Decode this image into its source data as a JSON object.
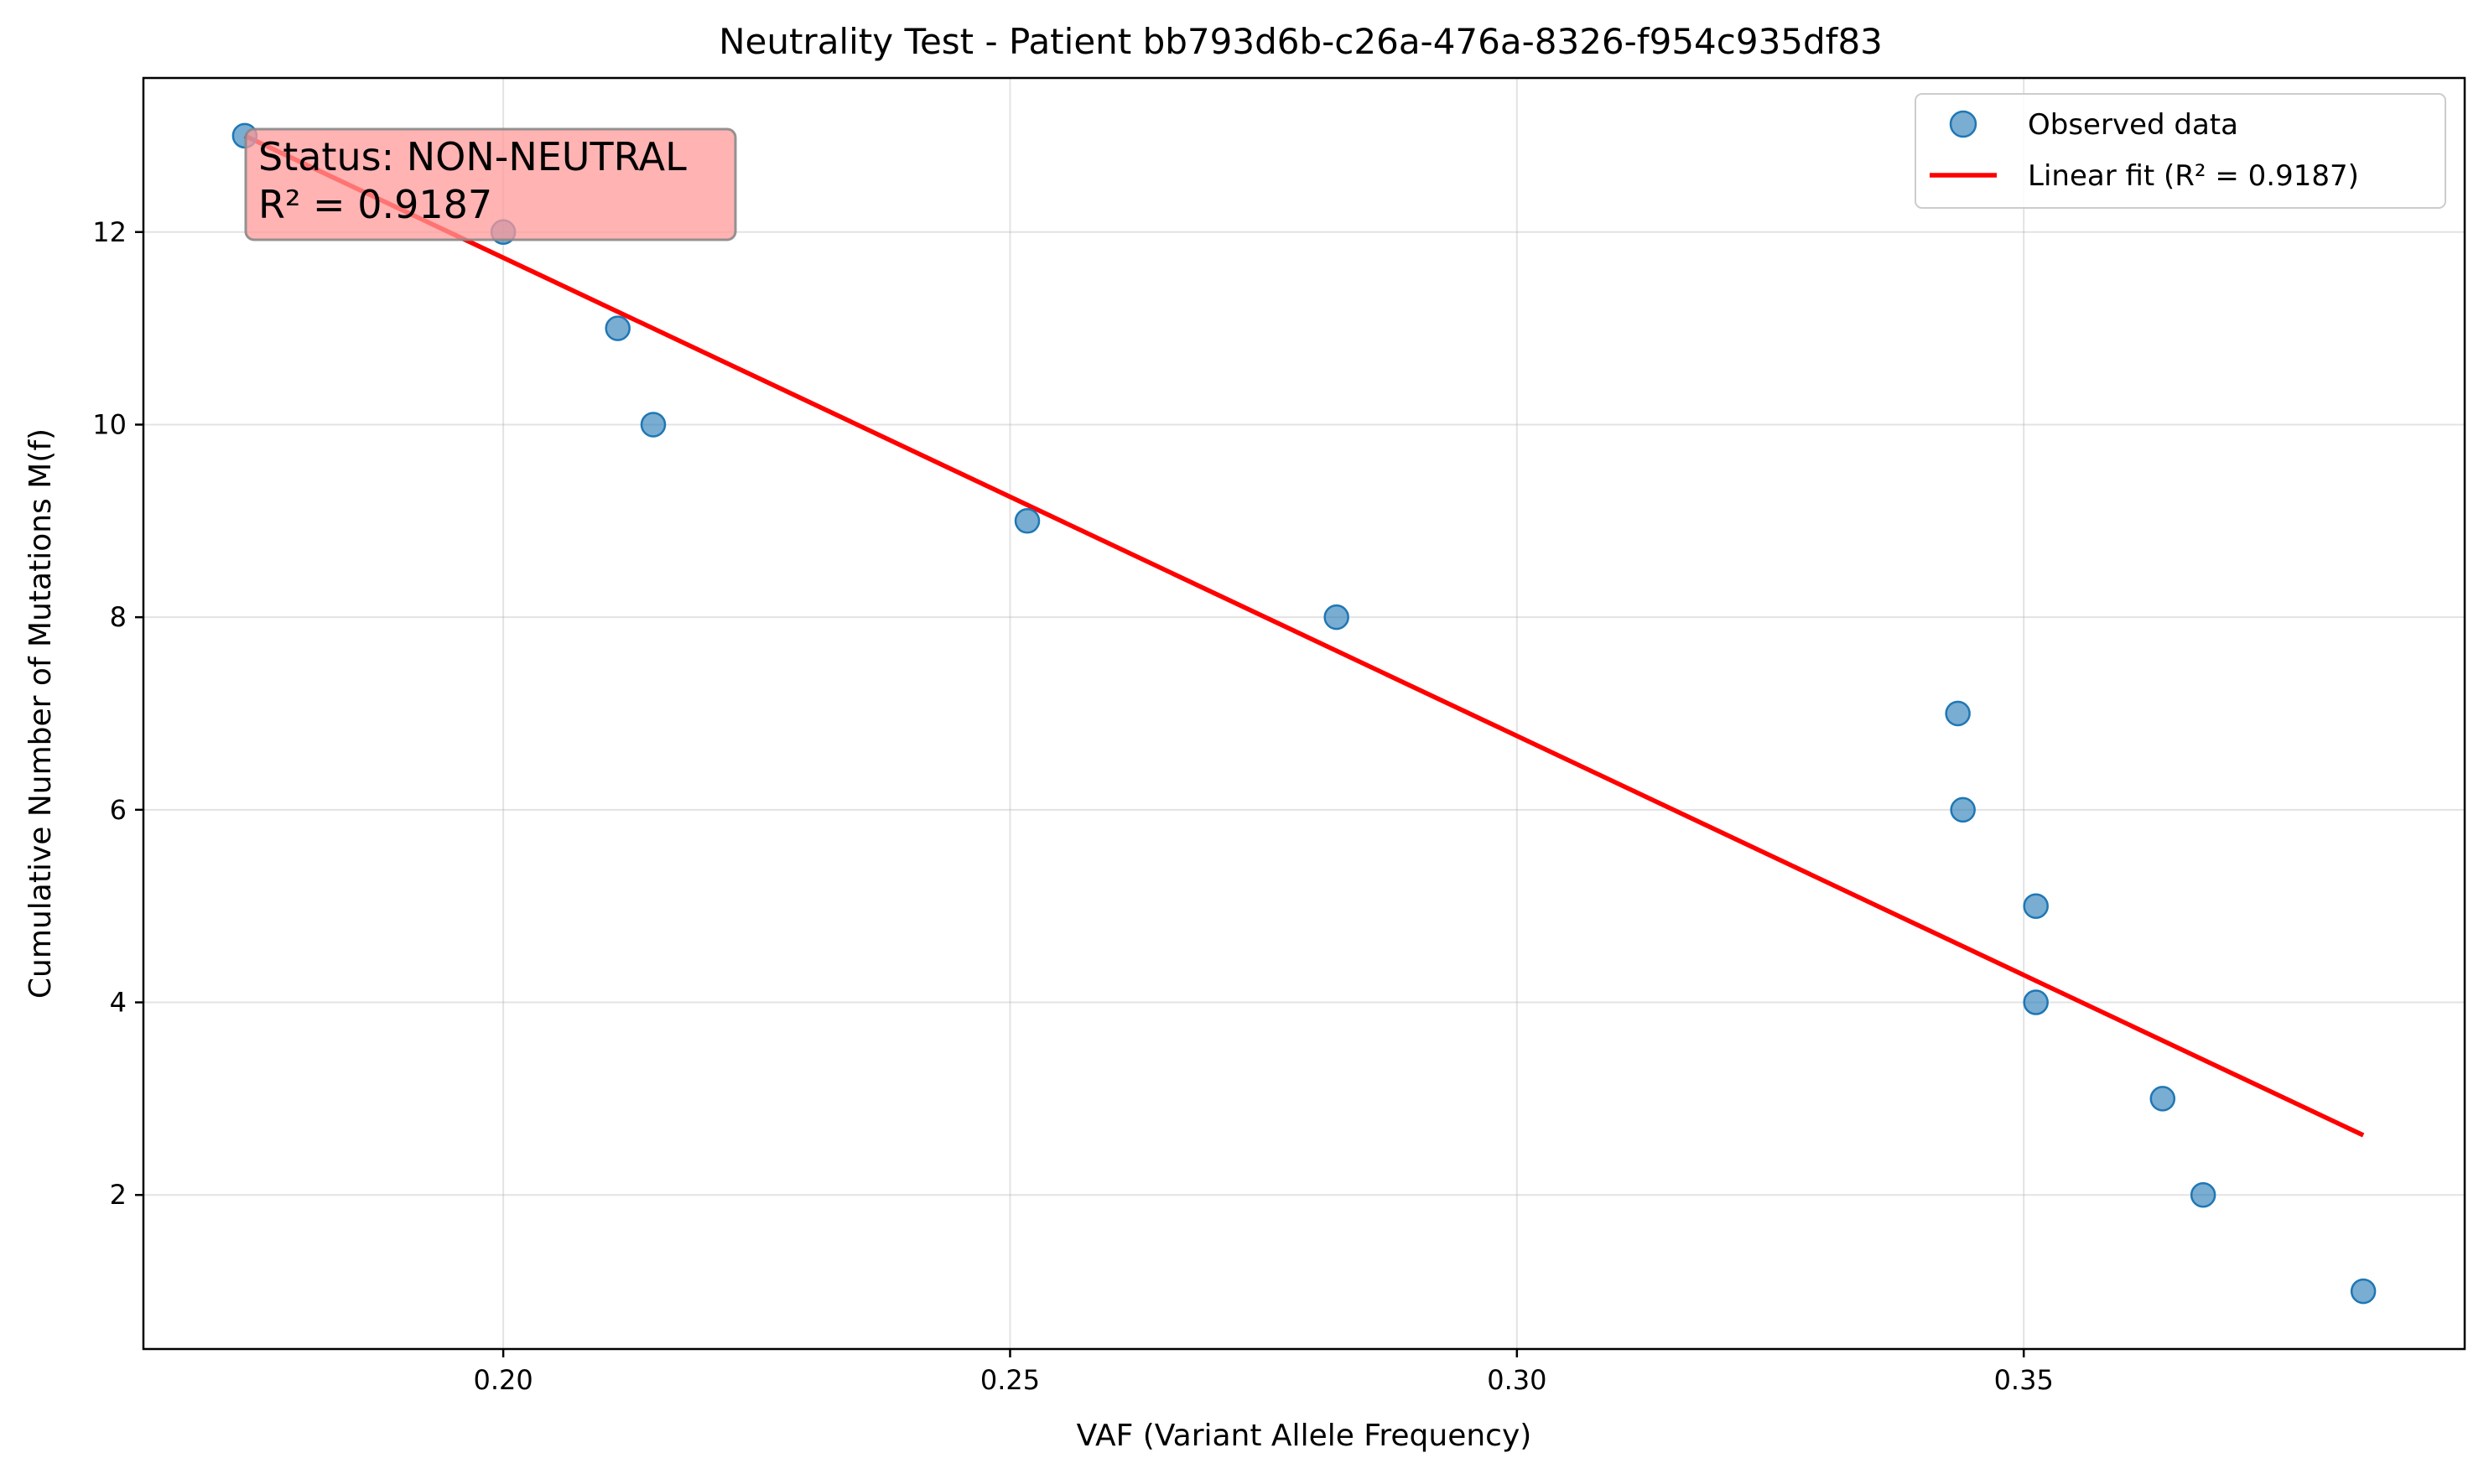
{
  "chart_data": {
    "type": "scatter",
    "title": "Neutrality Test - Patient bb793d6b-c26a-476a-8326-f954c935df83",
    "xlabel": "VAF (Variant Allele Frequency)",
    "ylabel": "Cumulative Number of Mutations M(f)",
    "xlim": [
      0.1645,
      0.3935
    ],
    "ylim": [
      0.4,
      13.6
    ],
    "xticks": [
      0.2,
      0.25,
      0.3,
      0.35
    ],
    "xtick_labels": [
      "0.20",
      "0.25",
      "0.30",
      "0.35"
    ],
    "yticks": [
      2,
      4,
      6,
      8,
      10,
      12
    ],
    "ytick_labels": [
      "2",
      "4",
      "6",
      "8",
      "10",
      "12"
    ],
    "grid": true,
    "legend_position": "top-right",
    "series": [
      {
        "name": "Observed data",
        "kind": "scatter",
        "color": "#1f77b4",
        "x": [
          0.1745,
          0.2,
          0.2113,
          0.2148,
          0.2517,
          0.2822,
          0.3435,
          0.344,
          0.3512,
          0.3512,
          0.3637,
          0.3677,
          0.3835
        ],
        "y": [
          13,
          12,
          11,
          10,
          9,
          8,
          7,
          6,
          5,
          4,
          3,
          2,
          1
        ]
      },
      {
        "name": "Linear fit (R² = 0.9187)",
        "kind": "line",
        "color": "#ff0000",
        "x": [
          0.1745,
          0.3835
        ],
        "y": [
          13.0,
          2.62
        ]
      }
    ],
    "annotation": {
      "lines": [
        "Status: NON-NEUTRAL",
        "R² = 0.9187"
      ],
      "box_color": "#ff9999",
      "placement": "top-left"
    }
  }
}
